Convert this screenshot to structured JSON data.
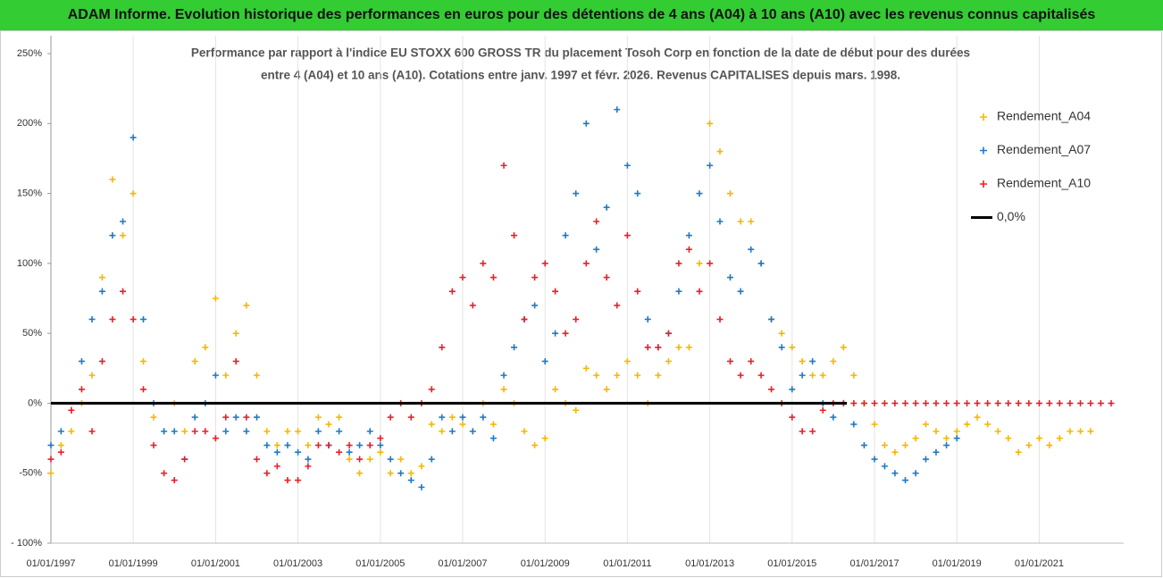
{
  "chart_data": {
    "type": "scatter",
    "title": "ADAM Informe. Evolution historique des performances en euros pour des détentions de 4 ans (A04) à 10 ans (A10) avec les revenus connus capitalisés",
    "subtitle": [
      "Performance par rapport à l'indice EU STOXX 600 GROSS TR  du placement Tosoh Corp en fonction de la date de début pour des durées",
      "entre 4 (A04) et 10 ans (A10). Cotations entre janv. 1997 et févr. 2026. Revenus CAPITALISES depuis mars. 1998."
    ],
    "xlim": [
      "01/01/1997",
      "20/01/2023"
    ],
    "xticks": [
      "01/01/1997",
      "01/01/1999",
      "01/01/2001",
      "01/01/2003",
      "01/01/2005",
      "01/01/2007",
      "01/01/2009",
      "01/01/2011",
      "01/01/2013",
      "01/01/2015",
      "01/01/2017",
      "01/01/2019",
      "01/01/2021"
    ],
    "ylim": [
      -100,
      250
    ],
    "yticks": [
      {
        "value": -100,
        "label": "- 100%"
      },
      {
        "value": -50,
        "label": "-50%"
      },
      {
        "value": 0,
        "label": "0%"
      },
      {
        "value": 50,
        "label": "50%"
      },
      {
        "value": 100,
        "label": "100%"
      },
      {
        "value": 150,
        "label": "150%"
      },
      {
        "value": 200,
        "label": "200%"
      },
      {
        "value": 250,
        "label": "250%"
      }
    ],
    "grid": "x",
    "legend": "right",
    "series": [
      {
        "name": "Rendement_A04",
        "color": "#f5b800",
        "type": "scatter",
        "x": [
          "01/01/1997",
          "01/04/1997",
          "01/07/1997",
          "01/10/1997",
          "01/01/1998",
          "01/04/1998",
          "01/07/1998",
          "01/10/1998",
          "01/01/1999",
          "01/04/1999",
          "01/07/1999",
          "01/10/1999",
          "01/01/2000",
          "01/04/2000",
          "01/07/2000",
          "01/10/2000",
          "01/01/2001",
          "01/04/2001",
          "01/07/2001",
          "01/10/2001",
          "01/01/2002",
          "01/04/2002",
          "01/07/2002",
          "01/10/2002",
          "01/01/2003",
          "01/04/2003",
          "01/07/2003",
          "01/10/2003",
          "01/01/2004",
          "01/04/2004",
          "01/07/2004",
          "01/10/2004",
          "01/01/2005",
          "01/04/2005",
          "01/07/2005",
          "01/10/2005",
          "01/01/2006",
          "01/04/2006",
          "01/07/2006",
          "01/10/2006",
          "01/01/2007",
          "01/04/2007",
          "01/07/2007",
          "01/10/2007",
          "01/01/2008",
          "01/04/2008",
          "01/07/2008",
          "01/10/2008",
          "01/01/2009",
          "01/04/2009",
          "01/07/2009",
          "01/10/2009",
          "01/01/2010",
          "01/04/2010",
          "01/07/2010",
          "01/10/2010",
          "01/01/2011",
          "01/04/2011",
          "01/07/2011",
          "01/10/2011",
          "01/01/2012",
          "01/04/2012",
          "01/07/2012",
          "01/10/2012",
          "01/01/2013",
          "01/04/2013",
          "01/07/2013",
          "01/10/2013",
          "01/01/2014",
          "01/04/2014",
          "01/07/2014",
          "01/10/2014",
          "01/01/2015",
          "01/04/2015",
          "01/07/2015",
          "01/10/2015",
          "01/01/2016",
          "01/04/2016",
          "01/07/2016",
          "01/10/2016",
          "01/01/2017",
          "01/04/2017",
          "01/07/2017",
          "01/10/2017",
          "01/01/2018",
          "01/04/2018",
          "01/07/2018",
          "01/10/2018",
          "01/01/2019",
          "01/04/2019",
          "01/07/2019",
          "01/10/2019",
          "01/01/2020",
          "01/04/2020",
          "01/07/2020",
          "01/10/2020",
          "01/01/2021",
          "01/04/2021",
          "01/07/2021",
          "01/10/2021",
          "01/01/2022",
          "01/04/2022"
        ],
        "values": [
          -50,
          -30,
          -20,
          0,
          20,
          90,
          160,
          120,
          150,
          30,
          -10,
          -20,
          0,
          -20,
          30,
          40,
          75,
          20,
          50,
          70,
          20,
          -20,
          -30,
          -20,
          -20,
          -30,
          -10,
          -15,
          -10,
          -40,
          -50,
          -40,
          -35,
          -50,
          -40,
          -50,
          -45,
          -15,
          -20,
          -10,
          -15,
          -20,
          0,
          -15,
          10,
          0,
          -20,
          -30,
          -25,
          10,
          0,
          -5,
          25,
          20,
          10,
          20,
          30,
          20,
          0,
          20,
          30,
          40,
          40,
          100,
          200,
          180,
          150,
          130,
          130,
          100,
          60,
          50,
          40,
          30,
          20,
          20,
          30,
          40,
          20,
          0,
          -15,
          -30,
          -35,
          -30,
          -25,
          -15,
          -20,
          -25,
          -20,
          -15,
          -10,
          -15,
          -20,
          -25,
          -35,
          -30,
          -25,
          -30,
          -25,
          -20,
          -20,
          -20
        ]
      },
      {
        "name": "Rendement_A07",
        "color": "#1f7ac4",
        "type": "scatter",
        "x": [
          "01/01/1997",
          "01/04/1997",
          "01/07/1997",
          "01/10/1997",
          "01/01/1998",
          "01/04/1998",
          "01/07/1998",
          "01/10/1998",
          "01/01/1999",
          "01/04/1999",
          "01/07/1999",
          "01/10/1999",
          "01/01/2000",
          "01/04/2000",
          "01/07/2000",
          "01/10/2000",
          "01/01/2001",
          "01/04/2001",
          "01/07/2001",
          "01/10/2001",
          "01/01/2002",
          "01/04/2002",
          "01/07/2002",
          "01/10/2002",
          "01/01/2003",
          "01/04/2003",
          "01/07/2003",
          "01/10/2003",
          "01/01/2004",
          "01/04/2004",
          "01/07/2004",
          "01/10/2004",
          "01/01/2005",
          "01/04/2005",
          "01/07/2005",
          "01/10/2005",
          "01/01/2006",
          "01/04/2006",
          "01/07/2006",
          "01/10/2006",
          "01/01/2007",
          "01/04/2007",
          "01/07/2007",
          "01/10/2007",
          "01/01/2008",
          "01/04/2008",
          "01/07/2008",
          "01/10/2008",
          "01/01/2009",
          "01/04/2009",
          "01/07/2009",
          "01/10/2009",
          "01/01/2010",
          "01/04/2010",
          "01/07/2010",
          "01/10/2010",
          "01/01/2011",
          "01/04/2011",
          "01/07/2011",
          "01/10/2011",
          "01/01/2012",
          "01/04/2012",
          "01/07/2012",
          "01/10/2012",
          "01/01/2013",
          "01/04/2013",
          "01/07/2013",
          "01/10/2013",
          "01/01/2014",
          "01/04/2014",
          "01/07/2014",
          "01/10/2014",
          "01/01/2015",
          "01/04/2015",
          "01/07/2015",
          "01/10/2015",
          "01/01/2016",
          "01/04/2016",
          "01/07/2016",
          "01/10/2016",
          "01/01/2017",
          "01/04/2017",
          "01/07/2017",
          "01/10/2017",
          "01/01/2018",
          "01/04/2018",
          "01/07/2018",
          "01/10/2018",
          "01/01/2019"
        ],
        "values": [
          -30,
          -20,
          -5,
          30,
          60,
          80,
          120,
          130,
          190,
          60,
          0,
          -20,
          -20,
          -40,
          -10,
          0,
          20,
          -20,
          -10,
          -20,
          -10,
          -30,
          -35,
          -30,
          -35,
          -40,
          -20,
          -30,
          -20,
          -35,
          -30,
          -20,
          -30,
          -40,
          -50,
          -55,
          -60,
          -40,
          -10,
          -20,
          -10,
          -20,
          -10,
          -25,
          20,
          40,
          60,
          70,
          30,
          50,
          120,
          150,
          200,
          110,
          140,
          210,
          170,
          150,
          60,
          40,
          50,
          80,
          120,
          150,
          170,
          130,
          90,
          80,
          110,
          100,
          60,
          40,
          10,
          20,
          30,
          0,
          -10,
          0,
          -15,
          -30,
          -40,
          -45,
          -50,
          -55,
          -50,
          -40,
          -35,
          -30,
          -25
        ]
      },
      {
        "name": "Rendement_A10",
        "color": "#e8202a",
        "type": "scatter",
        "x": [
          "01/01/1997",
          "01/04/1997",
          "01/07/1997",
          "01/10/1997",
          "01/01/1998",
          "01/04/1998",
          "01/07/1998",
          "01/10/1998",
          "01/01/1999",
          "01/04/1999",
          "01/07/1999",
          "01/10/1999",
          "01/01/2000",
          "01/04/2000",
          "01/07/2000",
          "01/10/2000",
          "01/01/2001",
          "01/04/2001",
          "01/07/2001",
          "01/10/2001",
          "01/01/2002",
          "01/04/2002",
          "01/07/2002",
          "01/10/2002",
          "01/01/2003",
          "01/04/2003",
          "01/07/2003",
          "01/10/2003",
          "01/01/2004",
          "01/04/2004",
          "01/07/2004",
          "01/10/2004",
          "01/01/2005",
          "01/04/2005",
          "01/07/2005",
          "01/10/2005",
          "01/01/2006",
          "01/04/2006",
          "01/07/2006",
          "01/10/2006",
          "01/01/2007",
          "01/04/2007",
          "01/07/2007",
          "01/10/2007",
          "01/01/2008",
          "01/04/2008",
          "01/07/2008",
          "01/10/2008",
          "01/01/2009",
          "01/04/2009",
          "01/07/2009",
          "01/10/2009",
          "01/01/2010",
          "01/04/2010",
          "01/07/2010",
          "01/10/2010",
          "01/01/2011",
          "01/04/2011",
          "01/07/2011",
          "01/10/2011",
          "01/01/2012",
          "01/04/2012",
          "01/07/2012",
          "01/10/2012",
          "01/01/2013",
          "01/04/2013",
          "01/07/2013",
          "01/10/2013",
          "01/01/2014",
          "01/04/2014",
          "01/07/2014",
          "01/10/2014",
          "01/01/2015",
          "01/04/2015",
          "01/07/2015",
          "01/10/2015",
          "01/01/2016",
          "01/04/2016",
          "01/07/2016",
          "01/10/2016",
          "01/01/2017",
          "01/04/2017",
          "01/07/2017",
          "01/10/2017",
          "01/01/2018",
          "01/04/2018",
          "01/07/2018",
          "01/10/2018",
          "01/01/2019",
          "01/04/2019",
          "01/07/2019",
          "01/10/2019",
          "01/01/2020",
          "01/04/2020",
          "01/07/2020",
          "01/10/2020",
          "01/01/2021",
          "01/04/2021",
          "01/07/2021",
          "01/10/2021",
          "01/01/2022",
          "01/04/2022",
          "01/07/2022",
          "01/10/2022"
        ],
        "values": [
          -40,
          -35,
          -5,
          10,
          -20,
          30,
          60,
          80,
          60,
          10,
          -30,
          -50,
          -55,
          -40,
          -20,
          -20,
          -25,
          -10,
          30,
          -10,
          -40,
          -50,
          -45,
          -55,
          -55,
          -45,
          -30,
          -30,
          -35,
          -30,
          -40,
          -30,
          -25,
          -10,
          0,
          -10,
          0,
          10,
          40,
          80,
          90,
          70,
          100,
          90,
          170,
          120,
          60,
          90,
          100,
          80,
          50,
          60,
          100,
          130,
          90,
          70,
          120,
          80,
          40,
          40,
          50,
          100,
          110,
          80,
          100,
          60,
          30,
          20,
          30,
          20,
          10,
          0,
          -10,
          -20,
          -20,
          -5,
          0,
          0,
          0,
          0,
          0,
          0,
          0,
          0,
          0,
          0,
          0,
          0,
          0,
          0,
          0,
          0,
          0,
          0,
          0,
          0,
          0,
          0,
          0,
          0,
          0,
          0,
          0,
          0
        ]
      },
      {
        "name": "0,0%",
        "color": "#000000",
        "type": "line",
        "x": [
          "01/01/1997",
          "01/05/2016"
        ],
        "values": [
          0,
          0
        ]
      }
    ]
  }
}
